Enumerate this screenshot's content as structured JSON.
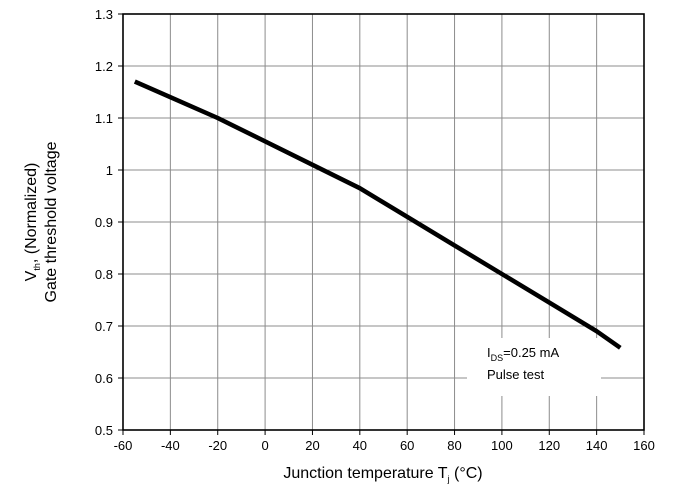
{
  "chart_data": {
    "type": "line",
    "xlabel": {
      "main": "Junction temperature T",
      "sub": "j",
      "unit": " (°C)"
    },
    "ylabel": {
      "symbol": "V",
      "sub": "th",
      "rest": ", (Normalized)",
      "line2": "Gate threshold voltage"
    },
    "xlim": [
      -60,
      160
    ],
    "ylim": [
      0.5,
      1.3
    ],
    "xticks": [
      "-60",
      "-40",
      "-20",
      "0",
      "20",
      "40",
      "60",
      "80",
      "100",
      "120",
      "140",
      "160"
    ],
    "yticks": [
      "0.5",
      "0.6",
      "0.7",
      "0.8",
      "0.9",
      "1",
      "1.1",
      "1.2",
      "1.3"
    ],
    "grid": true,
    "series": [
      {
        "x": [
          -55,
          -40,
          -20,
          0,
          20,
          40,
          60,
          80,
          100,
          120,
          140,
          150
        ],
        "y": [
          1.17,
          1.14,
          1.1,
          1.055,
          1.01,
          0.965,
          0.91,
          0.855,
          0.8,
          0.745,
          0.69,
          0.658
        ]
      }
    ],
    "annotation": {
      "line1_symbol": "I",
      "line1_sub": "DS",
      "line1_rest": "=0.25 mA",
      "line2": "Pulse test"
    }
  }
}
